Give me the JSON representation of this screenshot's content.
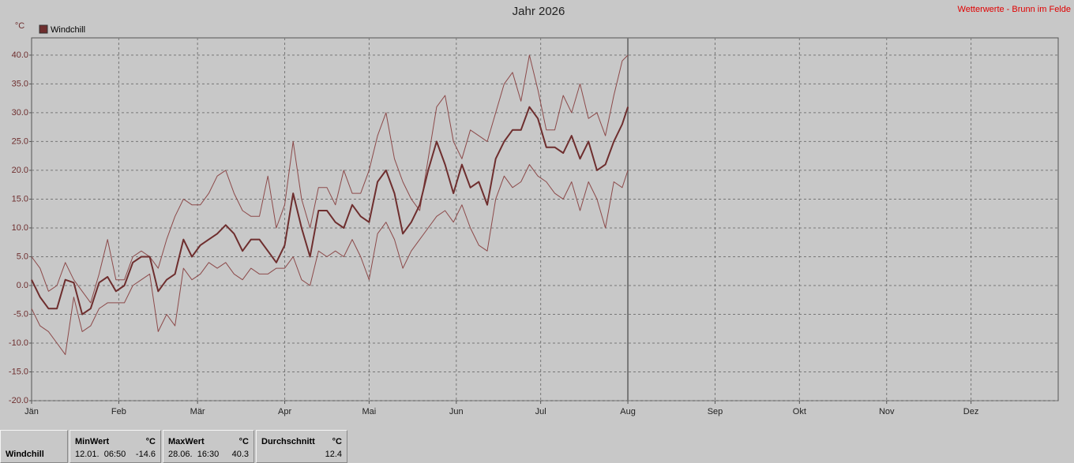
{
  "chart_data": {
    "type": "line",
    "title": "Jahr 2026",
    "subtitle": "Wetterwerte - Brunn im Felde",
    "ylabel": "°C",
    "x": [
      0,
      3,
      6,
      9,
      12,
      15,
      18,
      21,
      24,
      27,
      30,
      33,
      36,
      39,
      42,
      45,
      48,
      51,
      54,
      57,
      60,
      63,
      66,
      69,
      72,
      75,
      78,
      81,
      84,
      87,
      90,
      93,
      96,
      99,
      102,
      105,
      108,
      111,
      114,
      117,
      120,
      123,
      126,
      129,
      132,
      135,
      138,
      141,
      144,
      147,
      150,
      153,
      156,
      159,
      162,
      165,
      168,
      171,
      174,
      177,
      180,
      183,
      186,
      189,
      192,
      195,
      198,
      201,
      204,
      207,
      210,
      212
    ],
    "series": [
      {
        "color": "#8c4a4a",
        "linewidth": 1,
        "values": [
          5,
          3,
          -1,
          0,
          4,
          1,
          -1,
          -3,
          2,
          8,
          1,
          1,
          5,
          6,
          5,
          3,
          8,
          12,
          15,
          14,
          14,
          16,
          19,
          20,
          16,
          13,
          12,
          12,
          19,
          10,
          14,
          25,
          15,
          10,
          17,
          17,
          14,
          20,
          16,
          16,
          20,
          26,
          30,
          22,
          18,
          15,
          13,
          22,
          31,
          33,
          25,
          22,
          27,
          26,
          25,
          30,
          35,
          37,
          32,
          40,
          34,
          27,
          27,
          33,
          30,
          35,
          29,
          30,
          26,
          33,
          39,
          40
        ]
      },
      {
        "name": "Windchill",
        "color": "#6e2e2e",
        "linewidth": 2,
        "values": [
          1,
          -2,
          -4,
          -4,
          1,
          0.5,
          -5,
          -4,
          0.5,
          1.5,
          -1,
          0,
          4,
          5,
          5,
          -1,
          1,
          2,
          8,
          5,
          7,
          8,
          9,
          10.5,
          9,
          6,
          8,
          8,
          6,
          4,
          7,
          16,
          10,
          5,
          13,
          13,
          11,
          10,
          14,
          12,
          11,
          18,
          20,
          16,
          9,
          11,
          14,
          20,
          25,
          21,
          16,
          21,
          17,
          18,
          14,
          22,
          25,
          27,
          27,
          31,
          29,
          24,
          24,
          23,
          26,
          22,
          25,
          20,
          21,
          25,
          28,
          31
        ]
      },
      {
        "color": "#8c4a4a",
        "linewidth": 1,
        "values": [
          -4,
          -7,
          -8,
          -10,
          -12,
          -2,
          -8,
          -7,
          -4,
          -3,
          -3,
          -3,
          0,
          1,
          2,
          -8,
          -5,
          -7,
          3,
          1,
          2,
          4,
          3,
          4,
          2,
          1,
          3,
          2,
          2,
          3,
          3,
          5,
          1,
          0,
          6,
          5,
          6,
          5,
          8,
          5,
          1,
          9,
          11,
          8,
          3,
          6,
          8,
          10,
          12,
          13,
          11,
          14,
          10,
          7,
          6,
          15,
          19,
          17,
          18,
          21,
          19,
          18,
          16,
          15,
          18,
          13,
          18,
          15,
          10,
          18,
          17,
          20
        ]
      }
    ],
    "xlim": [
      0,
      365
    ],
    "xticks": [
      {
        "value": 0,
        "label": "Jän"
      },
      {
        "value": 31,
        "label": "Feb"
      },
      {
        "value": 59,
        "label": "Mär"
      },
      {
        "value": 90,
        "label": "Apr"
      },
      {
        "value": 120,
        "label": "Mai"
      },
      {
        "value": 151,
        "label": "Jun"
      },
      {
        "value": 181,
        "label": "Jul"
      },
      {
        "value": 212,
        "label": "Aug"
      },
      {
        "value": 243,
        "label": "Sep"
      },
      {
        "value": 273,
        "label": "Okt"
      },
      {
        "value": 304,
        "label": "Nov"
      },
      {
        "value": 334,
        "label": "Dez"
      }
    ],
    "ylim": [
      -20,
      43
    ],
    "yticks": [
      {
        "value": -20,
        "label": "-20.0"
      },
      {
        "value": -15,
        "label": "-15.0"
      },
      {
        "value": -10,
        "label": "-10.0"
      },
      {
        "value": -5,
        "label": "-5.0"
      },
      {
        "value": 0,
        "label": "0.0"
      },
      {
        "value": 5,
        "label": "5.0"
      },
      {
        "value": 10,
        "label": "10.0"
      },
      {
        "value": 15,
        "label": "15.0"
      },
      {
        "value": 20,
        "label": "20.0"
      },
      {
        "value": 25,
        "label": "25.0"
      },
      {
        "value": 30,
        "label": "30.0"
      },
      {
        "value": 35,
        "label": "35.0"
      },
      {
        "value": 40,
        "label": "40.0"
      }
    ],
    "grid": true
  },
  "stats": {
    "name": "Windchill",
    "columns": [
      {
        "label": "MinWert",
        "unit": "°C",
        "time": "12.01.  06:50",
        "value": "-14.6"
      },
      {
        "label": "MaxWert",
        "unit": "°C",
        "time": "28.06.  16:30",
        "value": "40.3"
      },
      {
        "label": "Durchschnitt",
        "unit": "°C",
        "value": "12.4"
      }
    ]
  }
}
